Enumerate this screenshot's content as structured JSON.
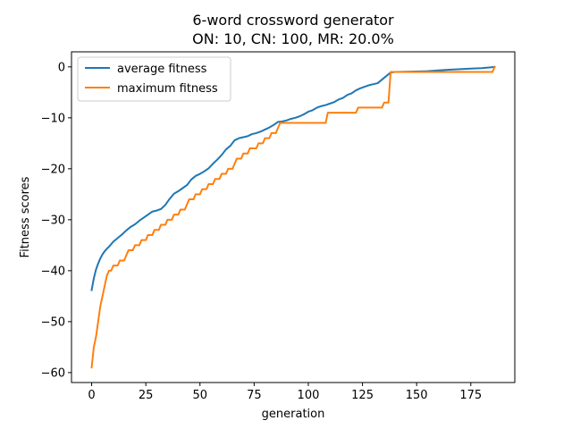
{
  "chart_data": {
    "type": "line",
    "title_lines": [
      "6-word crossword generator",
      "ON: 10, CN: 100, MR: 20.0%"
    ],
    "xlabel": "generation",
    "ylabel": "Fitness scores",
    "xlim": [
      -9.3,
      195.3
    ],
    "ylim": [
      -61.95,
      2.95
    ],
    "x_ticks": [
      0,
      25,
      50,
      75,
      100,
      125,
      150,
      175
    ],
    "y_ticks": [
      0,
      -10,
      -20,
      -30,
      -40,
      -50,
      -60
    ],
    "grid": false,
    "legend_position": "top-left",
    "series": [
      {
        "name": "average fitness",
        "color": "#1f77b4",
        "points": [
          [
            0,
            -43.8
          ],
          [
            1,
            -41.5
          ],
          [
            2,
            -39.8
          ],
          [
            3,
            -38.6
          ],
          [
            4,
            -37.6
          ],
          [
            5,
            -36.8
          ],
          [
            6,
            -36.2
          ],
          [
            7,
            -35.7
          ],
          [
            8,
            -35.3
          ],
          [
            9,
            -34.8
          ],
          [
            10,
            -34.3
          ],
          [
            12,
            -33.6
          ],
          [
            14,
            -32.9
          ],
          [
            16,
            -32.1
          ],
          [
            18,
            -31.4
          ],
          [
            20,
            -30.9
          ],
          [
            22,
            -30.2
          ],
          [
            24,
            -29.6
          ],
          [
            26,
            -29.0
          ],
          [
            28,
            -28.4
          ],
          [
            30,
            -28.2
          ],
          [
            32,
            -27.9
          ],
          [
            34,
            -27.1
          ],
          [
            36,
            -25.9
          ],
          [
            38,
            -24.9
          ],
          [
            40,
            -24.4
          ],
          [
            42,
            -23.8
          ],
          [
            44,
            -23.2
          ],
          [
            46,
            -22.1
          ],
          [
            48,
            -21.4
          ],
          [
            50,
            -21.0
          ],
          [
            52,
            -20.5
          ],
          [
            54,
            -19.9
          ],
          [
            56,
            -19.0
          ],
          [
            58,
            -18.2
          ],
          [
            60,
            -17.3
          ],
          [
            62,
            -16.2
          ],
          [
            64,
            -15.5
          ],
          [
            66,
            -14.4
          ],
          [
            68,
            -14.0
          ],
          [
            70,
            -13.8
          ],
          [
            72,
            -13.6
          ],
          [
            74,
            -13.2
          ],
          [
            76,
            -13.0
          ],
          [
            78,
            -12.7
          ],
          [
            80,
            -12.3
          ],
          [
            82,
            -11.9
          ],
          [
            84,
            -11.4
          ],
          [
            86,
            -10.8
          ],
          [
            88,
            -10.7
          ],
          [
            90,
            -10.5
          ],
          [
            92,
            -10.2
          ],
          [
            94,
            -10.0
          ],
          [
            96,
            -9.7
          ],
          [
            98,
            -9.3
          ],
          [
            100,
            -8.8
          ],
          [
            102,
            -8.5
          ],
          [
            104,
            -8.0
          ],
          [
            106,
            -7.7
          ],
          [
            108,
            -7.5
          ],
          [
            110,
            -7.2
          ],
          [
            112,
            -6.9
          ],
          [
            114,
            -6.4
          ],
          [
            116,
            -6.1
          ],
          [
            118,
            -5.5
          ],
          [
            120,
            -5.2
          ],
          [
            122,
            -4.6
          ],
          [
            124,
            -4.2
          ],
          [
            126,
            -3.9
          ],
          [
            128,
            -3.6
          ],
          [
            130,
            -3.4
          ],
          [
            132,
            -3.2
          ],
          [
            134,
            -2.5
          ],
          [
            136,
            -1.8
          ],
          [
            138,
            -1.1
          ],
          [
            140,
            -1.0
          ],
          [
            145,
            -0.95
          ],
          [
            150,
            -0.9
          ],
          [
            155,
            -0.85
          ],
          [
            160,
            -0.7
          ],
          [
            165,
            -0.55
          ],
          [
            170,
            -0.45
          ],
          [
            175,
            -0.35
          ],
          [
            180,
            -0.25
          ],
          [
            184,
            -0.1
          ],
          [
            186,
            0.0
          ]
        ]
      },
      {
        "name": "maximum fitness",
        "color": "#ff7f0e",
        "points": [
          [
            0,
            -59
          ],
          [
            1,
            -55
          ],
          [
            2,
            -53
          ],
          [
            3,
            -50
          ],
          [
            4,
            -47
          ],
          [
            5,
            -45
          ],
          [
            6,
            -43
          ],
          [
            7,
            -41
          ],
          [
            8,
            -40
          ],
          [
            9,
            -40
          ],
          [
            10,
            -39
          ],
          [
            12,
            -39
          ],
          [
            13,
            -38
          ],
          [
            15,
            -38
          ],
          [
            16,
            -37
          ],
          [
            17,
            -36
          ],
          [
            19,
            -36
          ],
          [
            20,
            -35
          ],
          [
            22,
            -35
          ],
          [
            23,
            -34
          ],
          [
            25,
            -34
          ],
          [
            26,
            -33
          ],
          [
            28,
            -33
          ],
          [
            29,
            -32
          ],
          [
            31,
            -32
          ],
          [
            32,
            -31
          ],
          [
            34,
            -31
          ],
          [
            35,
            -30
          ],
          [
            37,
            -30
          ],
          [
            38,
            -29
          ],
          [
            40,
            -29
          ],
          [
            41,
            -28
          ],
          [
            43,
            -28
          ],
          [
            44,
            -27
          ],
          [
            45,
            -26
          ],
          [
            47,
            -26
          ],
          [
            48,
            -25
          ],
          [
            50,
            -25
          ],
          [
            51,
            -24
          ],
          [
            53,
            -24
          ],
          [
            54,
            -23
          ],
          [
            56,
            -23
          ],
          [
            57,
            -22
          ],
          [
            59,
            -22
          ],
          [
            60,
            -21
          ],
          [
            62,
            -21
          ],
          [
            63,
            -20
          ],
          [
            65,
            -20
          ],
          [
            66,
            -19
          ],
          [
            67,
            -18
          ],
          [
            69,
            -18
          ],
          [
            70,
            -17
          ],
          [
            72,
            -17
          ],
          [
            73,
            -16
          ],
          [
            76,
            -16
          ],
          [
            77,
            -15
          ],
          [
            79,
            -15
          ],
          [
            80,
            -14
          ],
          [
            82,
            -14
          ],
          [
            83,
            -13
          ],
          [
            85,
            -13
          ],
          [
            86,
            -12
          ],
          [
            87,
            -11
          ],
          [
            90,
            -11
          ],
          [
            95,
            -11
          ],
          [
            100,
            -11
          ],
          [
            105,
            -11
          ],
          [
            108,
            -11
          ],
          [
            109,
            -9
          ],
          [
            115,
            -9
          ],
          [
            120,
            -9
          ],
          [
            122,
            -9
          ],
          [
            123,
            -8
          ],
          [
            127,
            -8
          ],
          [
            130,
            -8
          ],
          [
            134,
            -8
          ],
          [
            135,
            -7
          ],
          [
            137,
            -7
          ],
          [
            138,
            -1
          ],
          [
            140,
            -1
          ],
          [
            145,
            -1
          ],
          [
            150,
            -1
          ],
          [
            160,
            -1
          ],
          [
            170,
            -1
          ],
          [
            180,
            -1
          ],
          [
            185,
            -1
          ],
          [
            186,
            0
          ]
        ]
      }
    ]
  }
}
